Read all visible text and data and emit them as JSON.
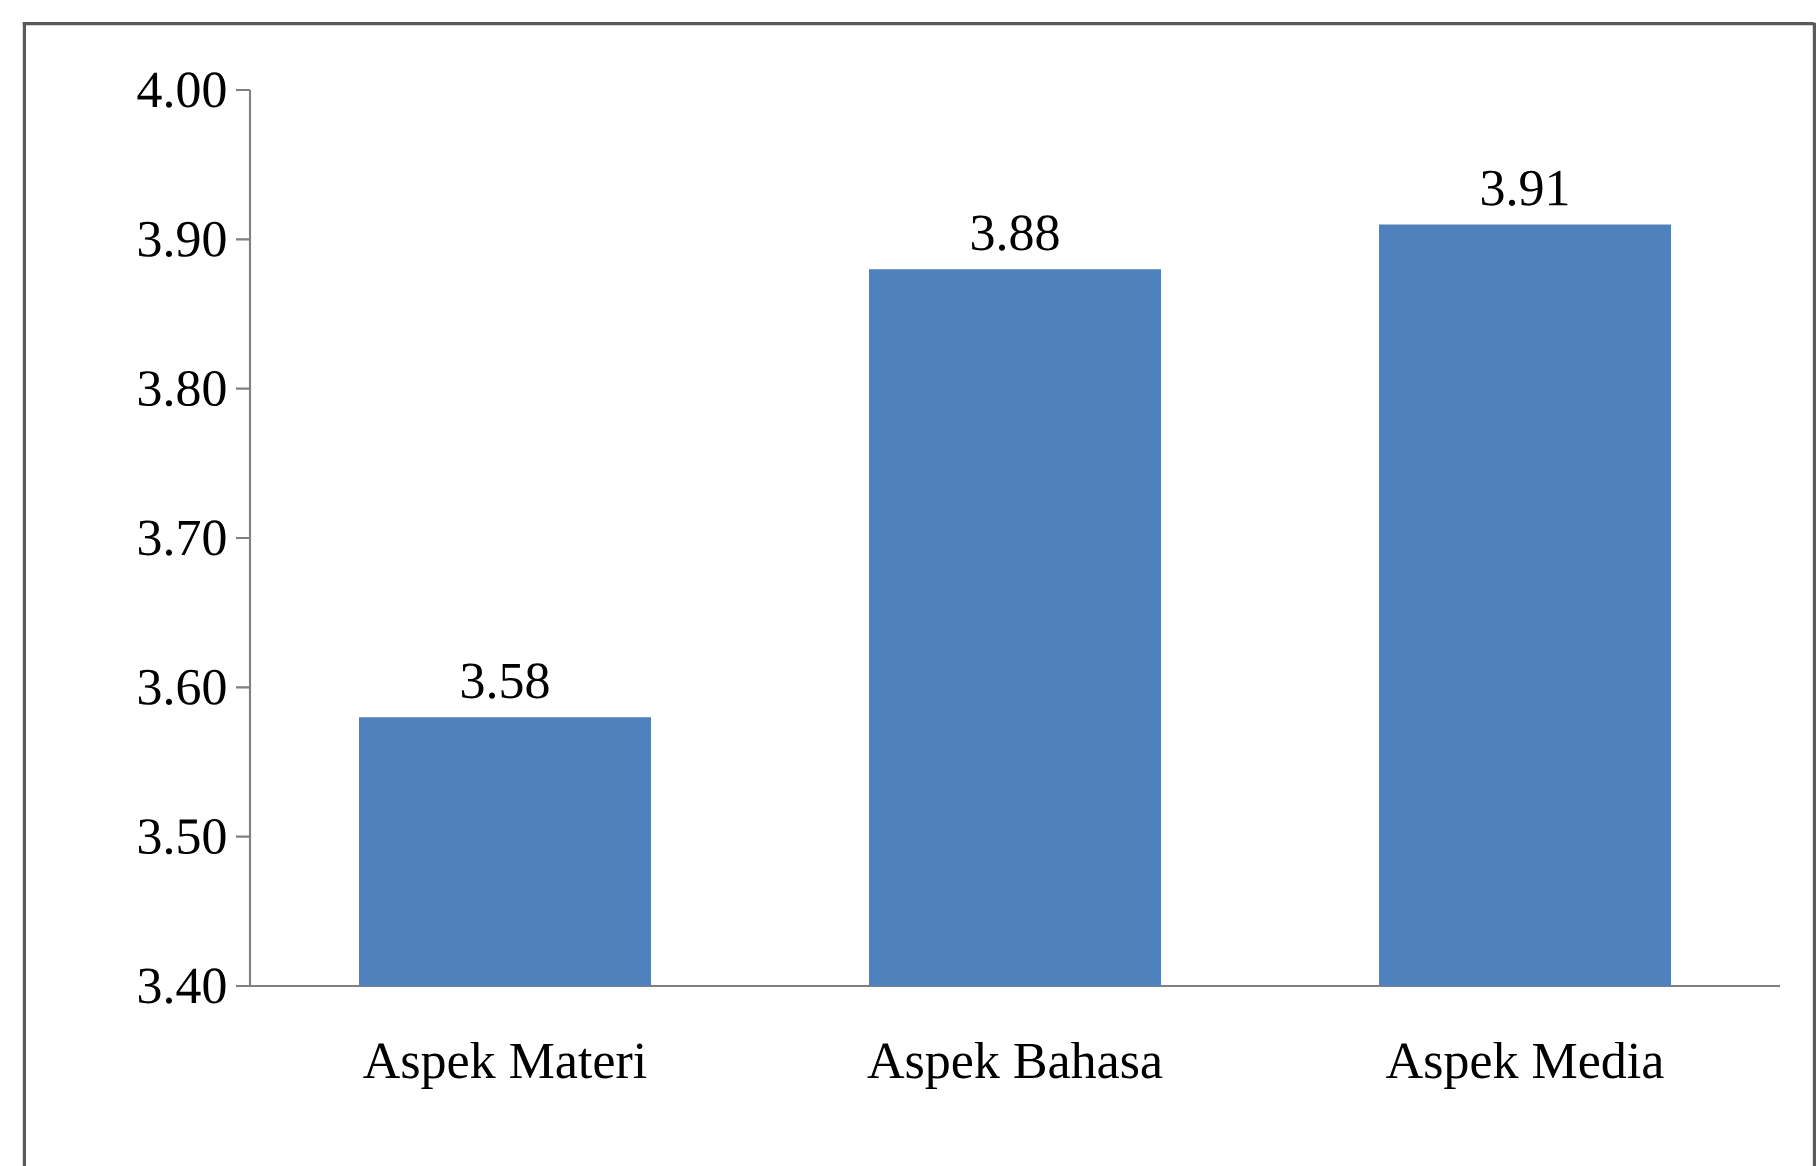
{
  "chart_data": {
    "type": "bar",
    "categories": [
      "Aspek Materi",
      "Aspek Bahasa",
      "Aspek Media"
    ],
    "values": [
      3.58,
      3.88,
      3.91
    ],
    "color": "#4f81bd",
    "data_labels": true,
    "ylim": [
      3.4,
      4.0
    ],
    "yticks": [
      {
        "value": 3.4,
        "label": "3.40"
      },
      {
        "value": 3.5,
        "label": "3.50"
      },
      {
        "value": 3.6,
        "label": "3.60"
      },
      {
        "value": 3.7,
        "label": "3.70"
      },
      {
        "value": 3.8,
        "label": "3.80"
      },
      {
        "value": 3.9,
        "label": "3.90"
      },
      {
        "value": 4.0,
        "label": "4.00"
      }
    ],
    "grid": false
  }
}
